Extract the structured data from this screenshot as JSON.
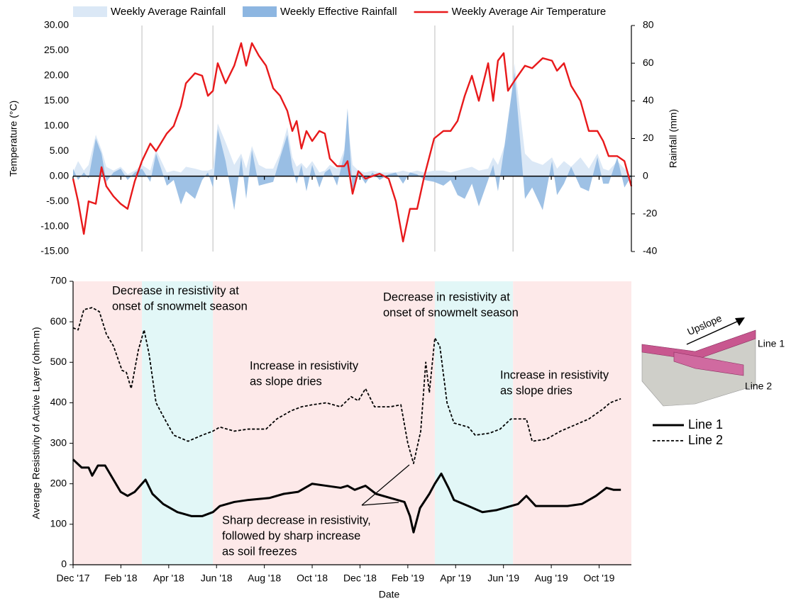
{
  "chart_data": [
    {
      "type": "combo",
      "y_label": "Temperature (°C)",
      "y2_label": "Rainfall (mm)",
      "xlim": [
        0,
        23.35
      ],
      "xticks": [
        0,
        2,
        4,
        6,
        8,
        10,
        12,
        14,
        16,
        18,
        20,
        22
      ],
      "ylim": [
        -15,
        30
      ],
      "yticks": [
        {
          "value": 30,
          "label": "30.00"
        },
        {
          "value": 25,
          "label": "25.00"
        },
        {
          "value": 20,
          "label": "20.00"
        },
        {
          "value": 15,
          "label": "15.00"
        },
        {
          "value": 10,
          "label": "10.00"
        },
        {
          "value": 5,
          "label": "5.00"
        },
        {
          "value": 0,
          "label": "0.00"
        },
        {
          "value": -5,
          "label": "-5.00"
        },
        {
          "value": -10,
          "label": "-10.00"
        },
        {
          "value": -15,
          "label": "-15.00"
        }
      ],
      "y2lim": [
        -40,
        80
      ],
      "y2ticks": [
        80,
        60,
        40,
        20,
        0,
        -20,
        -40
      ],
      "vlines": [
        2.88,
        5.85,
        15.13,
        18.4
      ],
      "legend": "top",
      "x": [
        0,
        0.21,
        0.45,
        0.65,
        0.95,
        1.19,
        1.39,
        1.69,
        1.99,
        2.28,
        2.58,
        2.88,
        3.23,
        3.47,
        3.92,
        4.21,
        4.51,
        4.72,
        5.1,
        5.4,
        5.64,
        5.85,
        6.05,
        6.38,
        6.74,
        7.03,
        7.24,
        7.48,
        7.77,
        8.07,
        8.37,
        8.66,
        8.96,
        9.17,
        9.35,
        9.55,
        9.76,
        10.0,
        10.3,
        10.53,
        10.74,
        11.04,
        11.34,
        11.48,
        11.69,
        11.93,
        12.23,
        12.52,
        12.82,
        13.2,
        13.5,
        13.8,
        14.09,
        14.39,
        14.69,
        15.1,
        15.49,
        15.79,
        16.08,
        16.38,
        16.68,
        16.97,
        17.36,
        17.57,
        17.77,
        18.01,
        18.19,
        18.46,
        18.9,
        19.2,
        19.64,
        20.03,
        20.24,
        20.53,
        20.83,
        21.22,
        21.57,
        21.93,
        22.17,
        22.4,
        22.76,
        23.06,
        23.35
      ],
      "series": [
        {
          "name": "Weekly Average Rainfall",
          "type": "area",
          "axis": "y2",
          "color": "#dbe8f6",
          "values": [
            2,
            8,
            3,
            6,
            22,
            14,
            5,
            3,
            5,
            1,
            3,
            6,
            3,
            14,
            2,
            3,
            2,
            5,
            4,
            3,
            3,
            4,
            28,
            18,
            6,
            12,
            4,
            16,
            6,
            4,
            4,
            12,
            26,
            10,
            5,
            7,
            4,
            8,
            2,
            3,
            6,
            4,
            14,
            30,
            6,
            3,
            2,
            3,
            2,
            2,
            2,
            3,
            2,
            3,
            2,
            3,
            3,
            2,
            3,
            4,
            5,
            3,
            4,
            10,
            6,
            15,
            20,
            60,
            12,
            8,
            6,
            10,
            4,
            8,
            5,
            10,
            4,
            12,
            4,
            3,
            8,
            4,
            0
          ]
        },
        {
          "name": "Weekly Effective Rainfall",
          "type": "area",
          "axis": "y2",
          "color": "#8db6e1",
          "values": [
            4,
            -2,
            2,
            -1,
            20,
            12,
            -3,
            2,
            4,
            -2,
            2,
            4,
            -3,
            12,
            -5,
            -2,
            -15,
            -8,
            -12,
            -2,
            2,
            -6,
            25,
            8,
            -18,
            10,
            -12,
            14,
            -5,
            -4,
            -3,
            10,
            22,
            5,
            -4,
            6,
            -8,
            6,
            -6,
            2,
            4,
            -5,
            12,
            36,
            -8,
            2,
            -4,
            2,
            -2,
            1,
            2,
            -4,
            2,
            1,
            -2,
            -3,
            -5,
            -2,
            -10,
            -12,
            -4,
            -16,
            -2,
            6,
            -8,
            13,
            30,
            55,
            -12,
            -6,
            -18,
            8,
            -10,
            -4,
            5,
            -6,
            -8,
            10,
            -4,
            -4,
            10,
            -6,
            0
          ]
        },
        {
          "name": "Weekly Average Air Temperature",
          "type": "line",
          "color": "#e8191b",
          "values": [
            -0.5,
            -5,
            -11.5,
            -5,
            -5.5,
            1.8,
            -2,
            -4,
            -5.5,
            -6.5,
            -1,
            3,
            6.5,
            5,
            8.5,
            10,
            14,
            18.5,
            20.5,
            20,
            16,
            17,
            22.5,
            18.5,
            22,
            26.5,
            22,
            26.5,
            24,
            22,
            17.5,
            16,
            13,
            9,
            11,
            5.5,
            9,
            7,
            9,
            8.5,
            3.5,
            2,
            2,
            3,
            -3.5,
            1,
            -0.5,
            0,
            0.5,
            -0.5,
            -5,
            -13,
            -6.5,
            -6.5,
            0,
            7.5,
            9,
            9,
            11,
            16,
            20,
            15,
            22.5,
            15,
            23,
            24.5,
            17,
            19,
            22,
            21.5,
            23.5,
            23,
            21,
            22.5,
            18,
            15,
            9,
            9,
            7,
            4,
            4,
            3,
            -2
          ]
        }
      ]
    },
    {
      "type": "line",
      "x_label": "Date",
      "y_label": "Average Resistivity of Active Layer (ohm-m)",
      "xlim": [
        0,
        23.35
      ],
      "xticks": [
        {
          "value": 0,
          "label": "Dec '17"
        },
        {
          "value": 2,
          "label": "Feb '18"
        },
        {
          "value": 4,
          "label": "Apr '18"
        },
        {
          "value": 6,
          "label": "Jun '18"
        },
        {
          "value": 8,
          "label": "Aug '18"
        },
        {
          "value": 10,
          "label": "Oct '18"
        },
        {
          "value": 12,
          "label": "Dec '18"
        },
        {
          "value": 14,
          "label": "Feb '19"
        },
        {
          "value": 16,
          "label": "Apr '19"
        },
        {
          "value": 18,
          "label": "Jun '19"
        },
        {
          "value": 20,
          "label": "Aug '19"
        },
        {
          "value": 22,
          "label": "Oct '19"
        }
      ],
      "ylim": [
        0,
        700
      ],
      "yticks": [
        0,
        100,
        200,
        300,
        400,
        500,
        600,
        700
      ],
      "shaded_periods": [
        {
          "start": 0,
          "end": 2.88,
          "color": "#fde9e9"
        },
        {
          "start": 2.88,
          "end": 5.85,
          "color": "#e2f7f7"
        },
        {
          "start": 5.85,
          "end": 15.13,
          "color": "#fde9e9"
        },
        {
          "start": 15.13,
          "end": 18.4,
          "color": "#e2f7f7"
        },
        {
          "start": 18.4,
          "end": 23.35,
          "color": "#fde9e9"
        }
      ],
      "legend": "right",
      "series": [
        {
          "name": "Line 1",
          "style": "solid",
          "color": "#000000",
          "x": [
            0,
            0.36,
            0.65,
            0.8,
            1.04,
            1.34,
            1.69,
            1.99,
            2.28,
            2.58,
            3.03,
            3.32,
            3.77,
            4.36,
            4.96,
            5.4,
            5.85,
            6.14,
            6.74,
            7.33,
            8.22,
            8.81,
            9.41,
            10.0,
            10.59,
            11.19,
            11.48,
            11.78,
            12.23,
            12.67,
            13.26,
            13.86,
            14.09,
            14.24,
            14.51,
            14.9,
            15.13,
            15.4,
            15.7,
            15.93,
            16.53,
            17.12,
            17.72,
            18.31,
            18.61,
            18.96,
            19.35,
            19.94,
            20.68,
            21.28,
            21.87,
            22.31,
            22.61,
            22.91
          ],
          "values": [
            260,
            240,
            240,
            220,
            245,
            245,
            210,
            180,
            170,
            180,
            210,
            175,
            150,
            130,
            120,
            120,
            130,
            145,
            155,
            160,
            165,
            175,
            180,
            200,
            195,
            190,
            195,
            185,
            195,
            175,
            165,
            155,
            120,
            80,
            140,
            175,
            200,
            225,
            190,
            160,
            145,
            130,
            135,
            145,
            150,
            170,
            145,
            145,
            145,
            150,
            170,
            190,
            185,
            185
          ]
        },
        {
          "name": "Line 2",
          "style": "dashed",
          "color": "#000000",
          "x": [
            0,
            0.21,
            0.45,
            0.8,
            1.1,
            1.39,
            1.69,
            2.05,
            2.23,
            2.43,
            2.73,
            2.97,
            3.18,
            3.47,
            3.83,
            4.21,
            4.81,
            5.4,
            5.85,
            6.14,
            6.74,
            7.33,
            8.07,
            8.52,
            9.11,
            9.55,
            10.0,
            10.59,
            11.19,
            11.63,
            11.93,
            12.23,
            12.61,
            13.26,
            13.71,
            14.0,
            14.24,
            14.54,
            14.75,
            14.9,
            15.13,
            15.34,
            15.64,
            15.93,
            16.53,
            16.82,
            17.42,
            17.86,
            18.31,
            18.96,
            19.2,
            19.79,
            20.39,
            20.98,
            21.57,
            22.17,
            22.46,
            22.91
          ],
          "values": [
            585,
            580,
            630,
            635,
            625,
            570,
            540,
            480,
            475,
            435,
            530,
            580,
            520,
            400,
            360,
            320,
            305,
            320,
            330,
            340,
            330,
            335,
            335,
            360,
            380,
            390,
            395,
            400,
            390,
            415,
            405,
            435,
            390,
            390,
            395,
            300,
            250,
            330,
            500,
            425,
            560,
            540,
            400,
            350,
            340,
            320,
            325,
            335,
            360,
            360,
            305,
            310,
            330,
            345,
            360,
            385,
            400,
            410
          ]
        }
      ],
      "annotations": [
        {
          "lines": [
            "Decrease in resistivity at",
            "onset of snowmelt season"
          ]
        },
        {
          "lines": [
            "Decrease in resistivity at",
            "onset of snowmelt season"
          ]
        },
        {
          "lines": [
            "Increase in resistivity",
            "as slope dries"
          ]
        },
        {
          "lines": [
            "Increase in resistivity",
            "as slope dries"
          ]
        },
        {
          "lines": [
            "Sharp decrease in resistivity,",
            "followed by sharp increase",
            "as soil freezes"
          ]
        }
      ],
      "illustration": {
        "arrow_label": "Upslope",
        "labels": [
          "Line 1",
          "Line 2"
        ]
      }
    }
  ]
}
